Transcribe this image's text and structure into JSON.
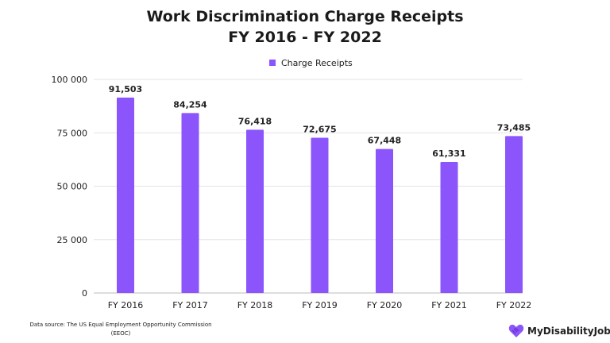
{
  "chart_data": {
    "type": "bar",
    "title": "Work Discrimination Charge Receipts",
    "subtitle": "FY 2016 - FY 2022",
    "categories": [
      "FY 2016",
      "FY 2017",
      "FY 2018",
      "FY 2019",
      "FY 2020",
      "FY 2021",
      "FY 2022"
    ],
    "series": [
      {
        "name": "Charge Receipts",
        "values": [
          91503,
          84254,
          76418,
          72675,
          67448,
          61331,
          73485
        ],
        "color": "#8b55fb"
      }
    ],
    "data_labels": [
      "91,503",
      "84,254",
      "76,418",
      "72,675",
      "67,448",
      "61,331",
      "73,485"
    ],
    "yticks": [
      0,
      25000,
      50000,
      75000,
      100000
    ],
    "ytick_labels": [
      "0",
      "25 000",
      "50 000",
      "75 000",
      "100 000"
    ],
    "ylim": [
      0,
      100000
    ],
    "grid": true,
    "legend": "top-center"
  },
  "footer": {
    "source": "Data source:  The US Equal Employment Opportunity Commission (EEOC)",
    "logo_text": "MyDisabilityJobs"
  }
}
